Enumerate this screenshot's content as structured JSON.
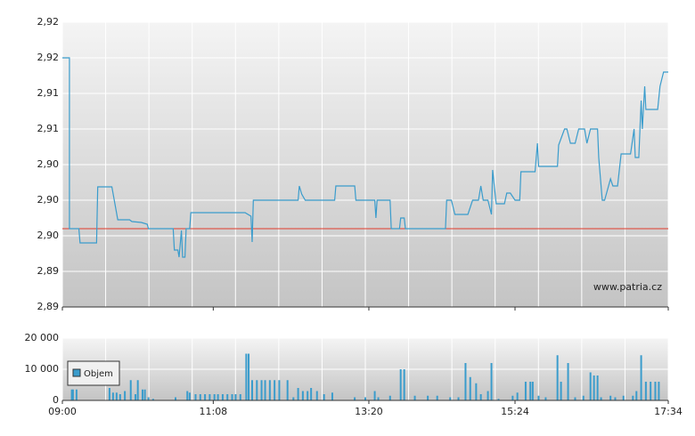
{
  "chart_data": [
    {
      "type": "line",
      "color": "#3a9ccc",
      "grid": true,
      "xlim": [
        "09:00",
        "17:34"
      ],
      "ylim": [
        2.888,
        2.92
      ],
      "yticks": [
        {
          "value": 2.888,
          "label": "2,89"
        },
        {
          "value": 2.892,
          "label": "2,89"
        },
        {
          "value": 2.896,
          "label": "2,90"
        },
        {
          "value": 2.9,
          "label": "2,90"
        },
        {
          "value": 2.904,
          "label": "2,90"
        },
        {
          "value": 2.908,
          "label": "2,91"
        },
        {
          "value": 2.912,
          "label": "2,91"
        },
        {
          "value": 2.916,
          "label": "2,92"
        },
        {
          "value": 2.92,
          "label": "2,92"
        }
      ],
      "reference_line": {
        "value": 2.8968,
        "color": "#e03a2a"
      },
      "annotation": "www.patria.cz",
      "x": [
        "09:00",
        "09:06",
        "09:06",
        "09:14",
        "09:15",
        "09:29",
        "09:30",
        "09:42",
        "09:47",
        "09:57",
        "09:59",
        "10:07",
        "10:12",
        "10:13",
        "10:34",
        "10:35",
        "10:38",
        "10:39",
        "10:41",
        "10:42",
        "10:44",
        "10:45",
        "10:48",
        "10:49",
        "11:35",
        "11:40",
        "11:41",
        "11:42",
        "12:20",
        "12:21",
        "12:23",
        "12:26",
        "12:51",
        "12:52",
        "13:08",
        "13:09",
        "13:25",
        "13:26",
        "13:27",
        "13:38",
        "13:39",
        "13:46",
        "13:47",
        "13:50",
        "13:51",
        "14:25",
        "14:26",
        "14:30",
        "14:33",
        "14:44",
        "14:48",
        "14:53",
        "14:55",
        "14:57",
        "15:01",
        "15:04",
        "15:05",
        "15:08",
        "15:15",
        "15:17",
        "15:20",
        "15:24",
        "15:28",
        "15:29",
        "15:41",
        "15:43",
        "15:44",
        "16:00",
        "16:01",
        "16:06",
        "16:08",
        "16:11",
        "16:15",
        "16:18",
        "16:23",
        "16:25",
        "16:28",
        "16:34",
        "16:35",
        "16:38",
        "16:40",
        "16:45",
        "16:47",
        "16:51",
        "16:54",
        "17:02",
        "17:05",
        "17:06",
        "17:09",
        "17:11",
        "17:12",
        "17:14",
        "17:15",
        "17:25",
        "17:27",
        "17:30",
        "17:34"
      ],
      "values": [
        2.916,
        2.916,
        2.8968,
        2.8968,
        2.8952,
        2.8952,
        2.9015,
        2.9015,
        2.8978,
        2.8978,
        2.8976,
        2.8975,
        2.8973,
        2.8968,
        2.8968,
        2.8944,
        2.8944,
        2.8936,
        2.8966,
        2.8936,
        2.8936,
        2.8968,
        2.8968,
        2.8986,
        2.8986,
        2.8982,
        2.8953,
        2.9,
        2.9,
        2.9016,
        2.9007,
        2.9,
        2.9,
        2.9016,
        2.9016,
        2.9,
        2.9,
        2.898,
        2.9,
        2.9,
        2.8968,
        2.8968,
        2.898,
        2.898,
        2.8968,
        2.8968,
        2.9,
        2.9,
        2.8984,
        2.8984,
        2.9,
        2.9,
        2.9016,
        2.9,
        2.9,
        2.8984,
        2.9034,
        2.8996,
        2.8996,
        2.9008,
        2.9008,
        2.9,
        2.9,
        2.9032,
        2.9032,
        2.9064,
        2.9038,
        2.9038,
        2.9062,
        2.908,
        2.908,
        2.9064,
        2.9064,
        2.908,
        2.908,
        2.9064,
        2.908,
        2.908,
        2.9048,
        2.9,
        2.9,
        2.9024,
        2.9016,
        2.9016,
        2.9052,
        2.9052,
        2.908,
        2.9048,
        2.9048,
        2.9112,
        2.908,
        2.9128,
        2.9102,
        2.9102,
        2.9128,
        2.9144,
        2.9144
      ]
    },
    {
      "type": "bar",
      "grid": true,
      "xlim": [
        "09:00",
        "17:34"
      ],
      "xticks": [
        "09:00",
        "11:08",
        "13:20",
        "15:24",
        "17:34"
      ],
      "ylim": [
        0,
        20000
      ],
      "yticks": [
        0,
        {
          "value": 10000,
          "label": "10 000"
        },
        {
          "value": 20000,
          "label": "20 000"
        }
      ],
      "series": [
        {
          "name": "Objem",
          "color": "#3a9ccc",
          "x": [
            "09:08",
            "09:09",
            "09:12",
            "09:40",
            "09:43",
            "09:46",
            "09:49",
            "09:53",
            "09:58",
            "10:02",
            "10:04",
            "10:08",
            "10:10",
            "10:13",
            "10:17",
            "10:36",
            "10:46",
            "10:48",
            "10:53",
            "10:57",
            "11:01",
            "11:05",
            "11:09",
            "11:12",
            "11:16",
            "11:20",
            "11:24",
            "11:27",
            "11:31",
            "11:36",
            "11:38",
            "11:41",
            "11:45",
            "11:49",
            "11:52",
            "11:56",
            "12:00",
            "12:04",
            "12:11",
            "12:16",
            "12:20",
            "12:24",
            "12:28",
            "12:31",
            "12:36",
            "12:42",
            "12:49",
            "13:08",
            "13:17",
            "13:25",
            "13:28",
            "13:38",
            "13:47",
            "13:50",
            "13:59",
            "14:10",
            "14:18",
            "14:29",
            "14:36",
            "14:42",
            "14:46",
            "14:51",
            "14:55",
            "15:01",
            "15:04",
            "15:10",
            "15:22",
            "15:26",
            "15:33",
            "15:37",
            "15:39",
            "15:44",
            "15:50",
            "16:00",
            "16:03",
            "16:09",
            "16:15",
            "16:22",
            "16:28",
            "16:31",
            "16:34",
            "16:37",
            "16:45",
            "16:49",
            "16:56",
            "17:04",
            "17:07",
            "17:11",
            "17:15",
            "17:19",
            "17:23",
            "17:26"
          ],
          "values": [
            3500,
            3500,
            3500,
            4000,
            2500,
            2500,
            2000,
            3000,
            6500,
            2000,
            6500,
            3500,
            3500,
            1000,
            500,
            1000,
            3000,
            2500,
            2000,
            2000,
            2000,
            2000,
            2000,
            2000,
            2000,
            2000,
            2000,
            2000,
            2000,
            15000,
            15000,
            6500,
            6500,
            6500,
            6500,
            6500,
            6500,
            6500,
            6500,
            1000,
            4000,
            3000,
            3000,
            4000,
            3000,
            2000,
            2500,
            1000,
            1000,
            3000,
            1000,
            1500,
            10000,
            10000,
            1500,
            1500,
            1500,
            1000,
            1000,
            12000,
            7500,
            5500,
            2000,
            3000,
            12000,
            500,
            1500,
            2500,
            6000,
            6000,
            6000,
            1500,
            1000,
            14500,
            6000,
            12000,
            1000,
            1500,
            9000,
            8000,
            8000,
            1000,
            1500,
            1000,
            1500,
            1500,
            3000,
            14500,
            6000,
            6000,
            6000,
            6000
          ]
        }
      ]
    }
  ]
}
